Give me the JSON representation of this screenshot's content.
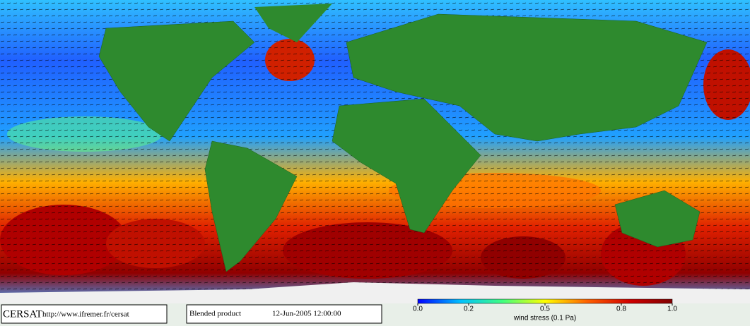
{
  "footer": {
    "producer": "CERSAT",
    "url": "http://www.ifremer.fr/cersat",
    "product": "Blended product",
    "date": "12-Jun-2005 12:00:00"
  },
  "colorbar": {
    "label": "wind stress (0.1 Pa)",
    "lim": [
      0,
      1
    ],
    "ticks": [
      {
        "value": 0,
        "label": "0.0"
      },
      0.2,
      0.5,
      0.8,
      {
        "value": 1,
        "label": "1.0"
      }
    ],
    "colors": [
      "#0000ff",
      "#00c0ff",
      "#40ff80",
      "#ffff00",
      "#ff6000",
      "#d00000",
      "#800000"
    ]
  }
}
